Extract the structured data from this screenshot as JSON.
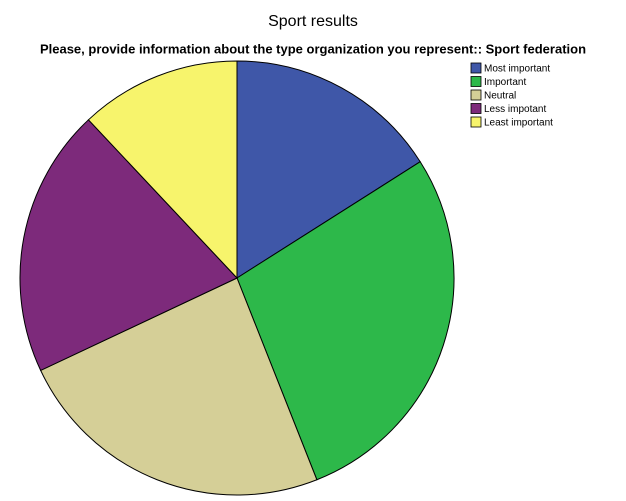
{
  "chart_data": {
    "type": "pie",
    "title": "Sport results",
    "subtitle": "Please, provide information about the type organization you represent:: Sport federation",
    "categories": [
      "Most important",
      "Important",
      "Neutral",
      "Less impotant",
      "Least important"
    ],
    "values": [
      16,
      28,
      24,
      20,
      12
    ],
    "colors": [
      "#3f57a8",
      "#2db84a",
      "#d5cf97",
      "#7d2a7b",
      "#f7f46c"
    ],
    "legend": "top-right"
  }
}
